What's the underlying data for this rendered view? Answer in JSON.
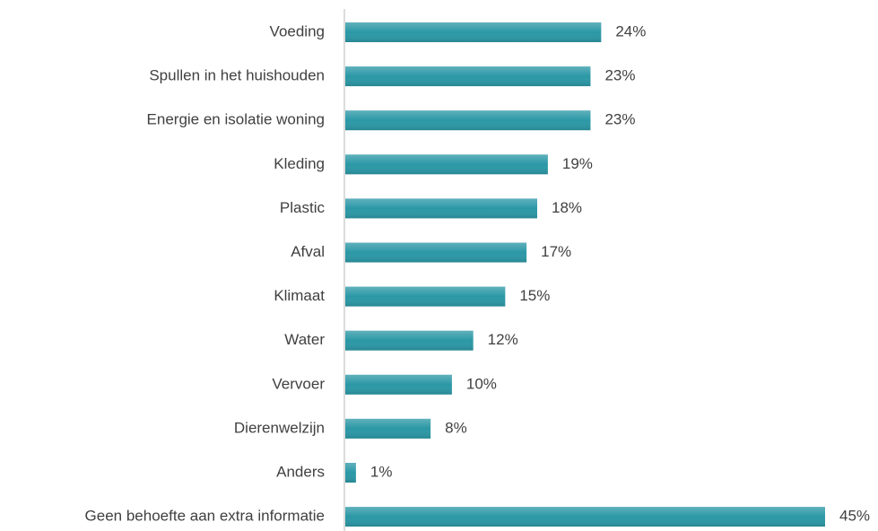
{
  "chart_data": {
    "type": "hbar",
    "categories": [
      "Voeding",
      "Spullen in het huishouden",
      "Energie en isolatie woning",
      "Kleding",
      "Plastic",
      "Afval",
      "Klimaat",
      "Water",
      "Vervoer",
      "Dierenwelzijn",
      "Anders",
      "Geen behoefte aan extra informatie"
    ],
    "values": [
      24,
      23,
      23,
      19,
      18,
      17,
      15,
      12,
      10,
      8,
      1,
      45
    ],
    "value_labels": [
      "24%",
      "23%",
      "23%",
      "19%",
      "18%",
      "17%",
      "15%",
      "12%",
      "10%",
      "8%",
      "1%",
      "45%"
    ],
    "color": "#2b98a6"
  }
}
